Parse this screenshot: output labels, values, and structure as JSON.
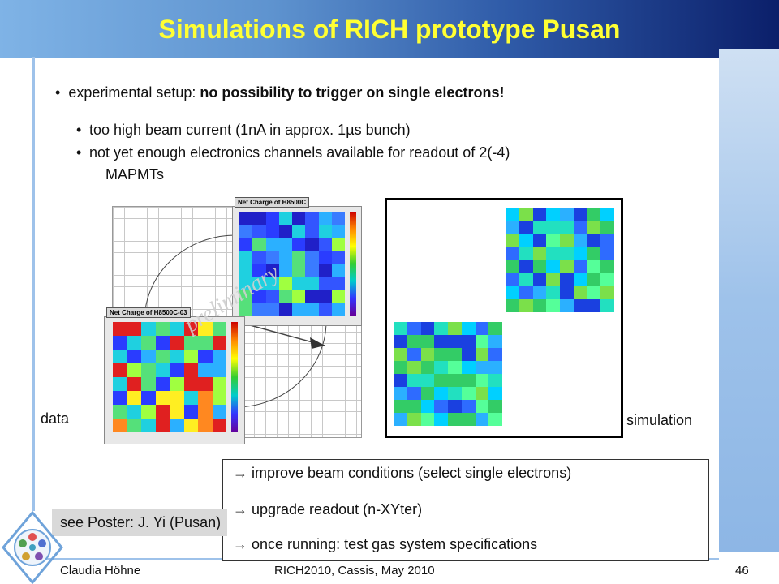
{
  "slide": {
    "title": "Simulations of RICH prototype Pusan",
    "bullet_prefix": "experimental setup: ",
    "bullet_bold": "no possibility to trigger on single electrons!",
    "sub_bullets": [
      "too high beam current (1nA in approx. 1µs bunch)",
      "not yet enough electronics channels available for readout of 2(-4)",
      "MAPMTs"
    ],
    "figure": {
      "panel_top_title": "Net Charge of H8500C",
      "panel_bottom_title": "Net Charge of H8500C-03",
      "watermark": "preliminary",
      "label_data": "data",
      "label_simulation": "simulation"
    },
    "notes": [
      "→ improve beam conditions (select single electrons)",
      "→ upgrade readout (n-XYter)",
      "→ once running: test gas system specifications"
    ],
    "poster": "see Poster: J. Yi (Pusan)",
    "footer": {
      "author": "Claudia Höhne",
      "event": "RICH2010, Cassis, May 2010",
      "page": "46"
    },
    "colors": {
      "title": "#ffff33",
      "title_bar_start": "#7fb3e6",
      "title_bar_end": "#0b1f6a",
      "accent_band": "#9ec2ea"
    }
  }
}
